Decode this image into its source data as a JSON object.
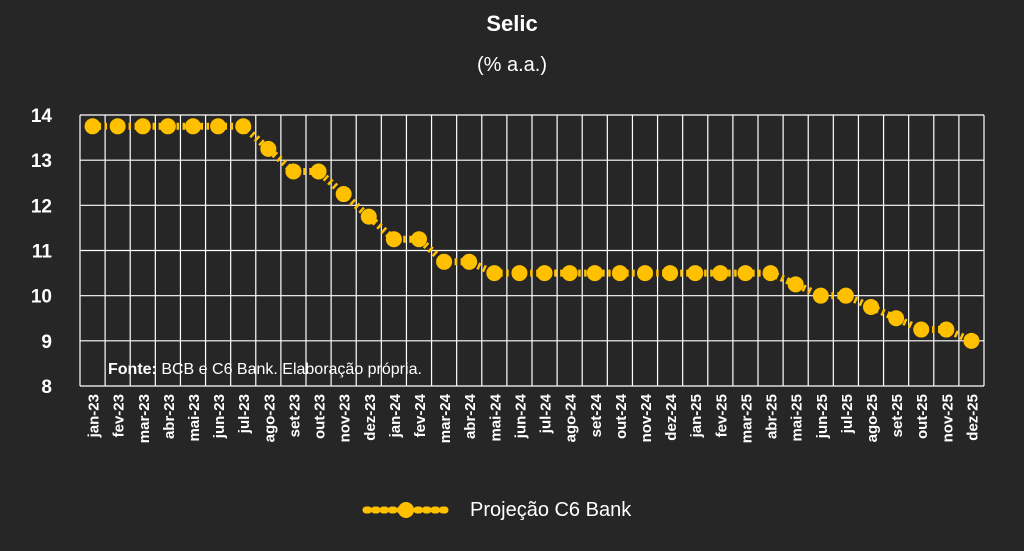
{
  "chart_data": {
    "type": "line",
    "title": "Selic",
    "subtitle": "(% a.a.)",
    "xlabel": "",
    "ylabel": "",
    "ylim": [
      8,
      14
    ],
    "yticks": [
      8,
      9,
      10,
      11,
      12,
      13,
      14
    ],
    "grid": true,
    "legend_position": "bottom",
    "categories": [
      "jan-23",
      "fev-23",
      "mar-23",
      "abr-23",
      "mai-23",
      "jun-23",
      "jul-23",
      "ago-23",
      "set-23",
      "out-23",
      "nov-23",
      "dez-23",
      "jan-24",
      "fev-24",
      "mar-24",
      "abr-24",
      "mai-24",
      "jun-24",
      "jul-24",
      "ago-24",
      "set-24",
      "out-24",
      "nov-24",
      "dez-24",
      "jan-25",
      "fev-25",
      "mar-25",
      "abr-25",
      "mai-25",
      "jun-25",
      "jul-25",
      "ago-25",
      "set-25",
      "out-25",
      "nov-25",
      "dez-25"
    ],
    "series": [
      {
        "name": "Projeção C6 Bank",
        "color": "#FFC000",
        "values": [
          13.75,
          13.75,
          13.75,
          13.75,
          13.75,
          13.75,
          13.75,
          13.25,
          12.75,
          12.75,
          12.25,
          11.75,
          11.25,
          11.25,
          10.75,
          10.75,
          10.5,
          10.5,
          10.5,
          10.5,
          10.5,
          10.5,
          10.5,
          10.5,
          10.5,
          10.5,
          10.5,
          10.5,
          10.25,
          10.0,
          10.0,
          9.75,
          9.5,
          9.25,
          9.25,
          9.0
        ]
      }
    ],
    "annotation": {
      "source_label": "Fonte:",
      "source_text": " BCB e C6 Bank. Elaboração própria."
    }
  },
  "colors": {
    "background": "#262626",
    "grid": "#ffffff",
    "series": "#FFC000",
    "text": "#ffffff"
  }
}
